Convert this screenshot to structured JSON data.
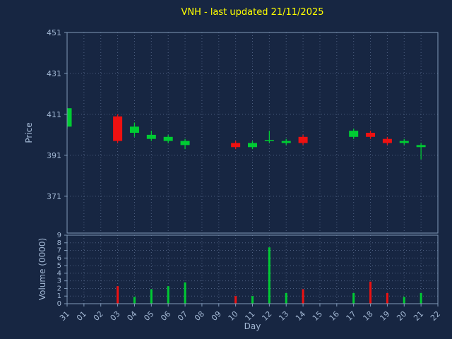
{
  "colors": {
    "background": "#172642",
    "title": "#ffff00",
    "axis_text": "#a3b8d4",
    "grid": "#4d5f80",
    "spine": "#8099b8",
    "up": "#00cc33",
    "down": "#ee1111"
  },
  "chart_data": [
    {
      "type": "candlestick",
      "title": "VNH - last updated 21/11/2025",
      "xlabel": "Day",
      "ylabel": "Price",
      "ylim": [
        353,
        451
      ],
      "yticks": [
        371,
        391,
        411,
        431,
        451
      ],
      "grid": true,
      "categories": [
        "31",
        "01",
        "02",
        "03",
        "04",
        "05",
        "06",
        "07",
        "08",
        "09",
        "10",
        "11",
        "12",
        "13",
        "14",
        "15",
        "16",
        "17",
        "18",
        "19",
        "20",
        "21",
        "22"
      ],
      "candles": [
        {
          "day": "31",
          "open": 405,
          "high": 414,
          "low": 404,
          "close": 414
        },
        {
          "day": "03",
          "open": 410,
          "high": 411,
          "low": 397,
          "close": 398
        },
        {
          "day": "04",
          "open": 402,
          "high": 407,
          "low": 400,
          "close": 405
        },
        {
          "day": "05",
          "open": 399,
          "high": 403,
          "low": 398,
          "close": 401
        },
        {
          "day": "06",
          "open": 398,
          "high": 401,
          "low": 397,
          "close": 400
        },
        {
          "day": "07",
          "open": 396,
          "high": 399,
          "low": 394,
          "close": 398
        },
        {
          "day": "10",
          "open": 397,
          "high": 398,
          "low": 394,
          "close": 395
        },
        {
          "day": "11",
          "open": 395,
          "high": 398,
          "low": 394,
          "close": 397
        },
        {
          "day": "12",
          "open": 398,
          "high": 403,
          "low": 397,
          "close": 398.5
        },
        {
          "day": "13",
          "open": 397,
          "high": 399,
          "low": 396,
          "close": 398
        },
        {
          "day": "14",
          "open": 400,
          "high": 401,
          "low": 396,
          "close": 397
        },
        {
          "day": "17",
          "open": 400,
          "high": 404,
          "low": 399,
          "close": 403
        },
        {
          "day": "18",
          "open": 402,
          "high": 403,
          "low": 399,
          "close": 400
        },
        {
          "day": "19",
          "open": 399,
          "high": 400,
          "low": 396,
          "close": 397
        },
        {
          "day": "20",
          "open": 397,
          "high": 399,
          "low": 396,
          "close": 398
        },
        {
          "day": "21",
          "open": 395,
          "high": 397,
          "low": 389,
          "close": 396
        }
      ]
    },
    {
      "type": "bar",
      "ylabel": "Volume (0000)",
      "ylim": [
        0,
        9
      ],
      "yticks": [
        0,
        1,
        2,
        3,
        4,
        5,
        6,
        7,
        8,
        9
      ],
      "grid": true,
      "bars": [
        {
          "day": "03",
          "value": 2.3,
          "direction": "down"
        },
        {
          "day": "04",
          "value": 0.9,
          "direction": "up"
        },
        {
          "day": "05",
          "value": 1.9,
          "direction": "up"
        },
        {
          "day": "06",
          "value": 2.3,
          "direction": "up"
        },
        {
          "day": "07",
          "value": 2.8,
          "direction": "up"
        },
        {
          "day": "10",
          "value": 1.0,
          "direction": "down"
        },
        {
          "day": "11",
          "value": 1.0,
          "direction": "up"
        },
        {
          "day": "12",
          "value": 7.4,
          "direction": "up"
        },
        {
          "day": "13",
          "value": 1.4,
          "direction": "up"
        },
        {
          "day": "14",
          "value": 1.9,
          "direction": "down"
        },
        {
          "day": "17",
          "value": 1.4,
          "direction": "up"
        },
        {
          "day": "18",
          "value": 2.9,
          "direction": "down"
        },
        {
          "day": "19",
          "value": 1.4,
          "direction": "down"
        },
        {
          "day": "20",
          "value": 0.9,
          "direction": "up"
        },
        {
          "day": "21",
          "value": 1.4,
          "direction": "up"
        }
      ]
    }
  ]
}
